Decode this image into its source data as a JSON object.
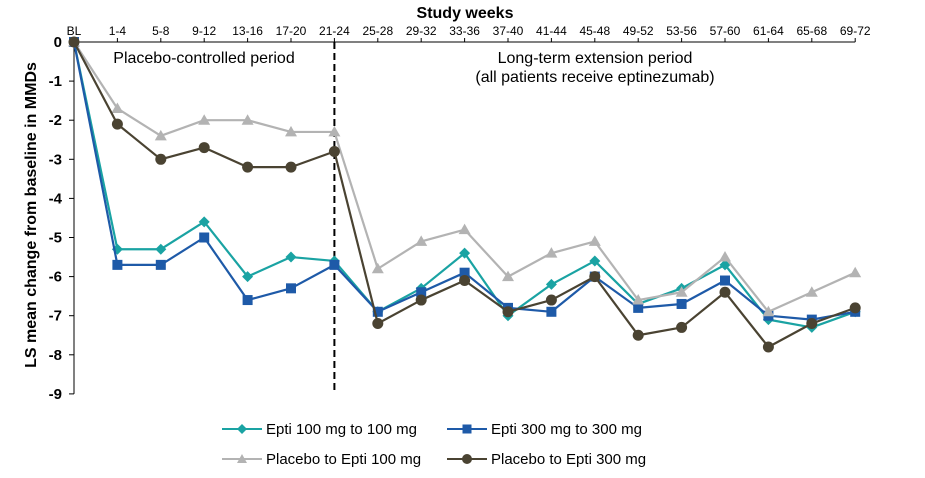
{
  "chart_data": {
    "type": "line",
    "xlabel": "Study weeks",
    "ylabel": "LS mean change from baseline in MMDs",
    "ylim": [
      -9,
      0
    ],
    "yticks": [
      0,
      -1,
      -2,
      -3,
      -4,
      -5,
      -6,
      -7,
      -8,
      -9
    ],
    "categories": [
      "BL",
      "1-4",
      "5-8",
      "9-12",
      "13-16",
      "17-20",
      "21-24",
      "25-28",
      "29-32",
      "33-36",
      "37-40",
      "41-44",
      "45-48",
      "49-52",
      "53-56",
      "57-60",
      "61-64",
      "65-68",
      "69-72"
    ],
    "divider_after": "21-24",
    "annotations": [
      {
        "text": "Placebo-controlled period"
      },
      {
        "text": "Long-term extension period"
      },
      {
        "text": "(all patients receive eptinezumab)"
      }
    ],
    "series": [
      {
        "name": "Epti 100 mg to 100 mg",
        "color": "#1aa3a3",
        "marker": "diamond",
        "values": [
          0,
          -5.3,
          -5.3,
          -4.6,
          -6.0,
          -5.5,
          -5.6,
          -6.9,
          -6.3,
          -5.4,
          -7.0,
          -6.2,
          -5.6,
          -6.7,
          -6.3,
          -5.7,
          -7.1,
          -7.3,
          -6.9
        ]
      },
      {
        "name": "Epti 300 mg to 300 mg",
        "color": "#1e5aa8",
        "marker": "square",
        "values": [
          0,
          -5.7,
          -5.7,
          -5.0,
          -6.6,
          -6.3,
          -5.7,
          -6.9,
          -6.4,
          -5.9,
          -6.8,
          -6.9,
          -6.0,
          -6.8,
          -6.7,
          -6.1,
          -7.0,
          -7.1,
          -6.9
        ]
      },
      {
        "name": "Placebo to Epti 100 mg",
        "color": "#b3b3b3",
        "marker": "triangle",
        "values": [
          0,
          -1.7,
          -2.4,
          -2.0,
          -2.0,
          -2.3,
          -2.3,
          -5.8,
          -5.1,
          -4.8,
          -6.0,
          -5.4,
          -5.1,
          -6.6,
          -6.4,
          -5.5,
          -6.9,
          -6.4,
          -5.9
        ]
      },
      {
        "name": "Placebo to Epti 300 mg",
        "color": "#4a4332",
        "marker": "circle",
        "values": [
          0,
          -2.1,
          -3.0,
          -2.7,
          -3.2,
          -3.2,
          -2.8,
          -7.2,
          -6.6,
          -6.1,
          -6.9,
          -6.6,
          -6.0,
          -7.5,
          -7.3,
          -6.4,
          -7.8,
          -7.2,
          -6.8
        ]
      }
    ],
    "legend_position": "bottom",
    "grid": false
  }
}
